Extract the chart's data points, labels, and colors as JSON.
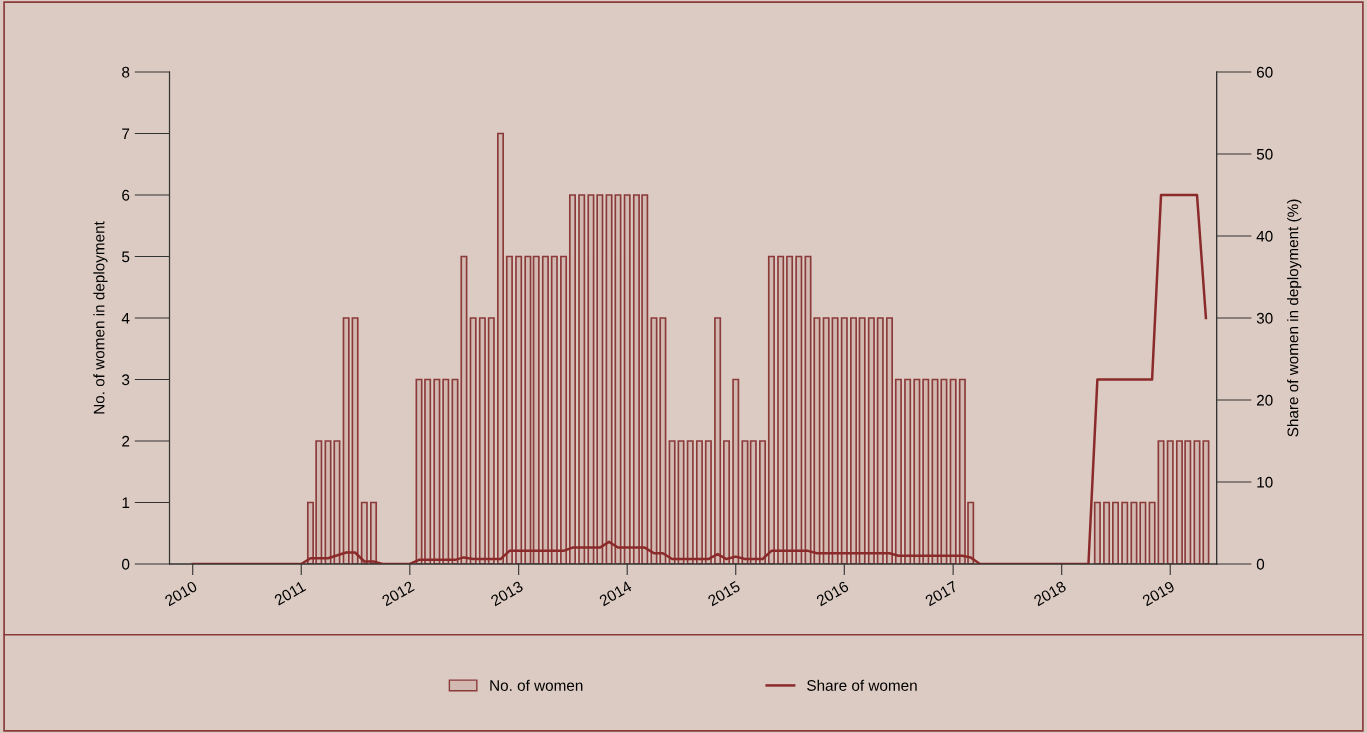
{
  "chart_data": {
    "type": "bar",
    "ylabel": "No. of women in deployment",
    "y2label": "Share of women in deployment (%)",
    "xlim": [
      "2009-10-15",
      "2019-06-06"
    ],
    "xticks": [
      "2010",
      "2011",
      "2012",
      "2013",
      "2014",
      "2015",
      "2016",
      "2017",
      "2018",
      "2019"
    ],
    "ylim": [
      0,
      8
    ],
    "yticks": [
      0,
      1,
      2,
      3,
      4,
      5,
      6,
      7,
      8
    ],
    "y2lim": [
      0,
      60
    ],
    "y2ticks": [
      0,
      10,
      20,
      30,
      40,
      50,
      60
    ],
    "grid": false,
    "legend": "bottom",
    "series": [
      {
        "name": "No. of women",
        "color": "#8b3a3a",
        "x": [
          "2011-02",
          "2011-03",
          "2011-04",
          "2011-05",
          "2011-06",
          "2011-07",
          "2011-08",
          "2011-09",
          "2012-02",
          "2012-03",
          "2012-04",
          "2012-05",
          "2012-06",
          "2012-07",
          "2012-08",
          "2012-09",
          "2012-10",
          "2012-11",
          "2012-12",
          "2013-01",
          "2013-02",
          "2013-03",
          "2013-04",
          "2013-05",
          "2013-06",
          "2013-07",
          "2013-08",
          "2013-09",
          "2013-10",
          "2013-11",
          "2013-12",
          "2014-01",
          "2014-02",
          "2014-03",
          "2014-04",
          "2014-05",
          "2014-06",
          "2014-07",
          "2014-08",
          "2014-09",
          "2014-10",
          "2014-11",
          "2014-12",
          "2015-01",
          "2015-02",
          "2015-03",
          "2015-04",
          "2015-05",
          "2015-06",
          "2015-07",
          "2015-08",
          "2015-09",
          "2015-10",
          "2015-11",
          "2015-12",
          "2016-01",
          "2016-02",
          "2016-03",
          "2016-04",
          "2016-05",
          "2016-06",
          "2016-07",
          "2016-08",
          "2016-09",
          "2016-10",
          "2016-11",
          "2016-12",
          "2017-01",
          "2017-02",
          "2017-03",
          "2018-05",
          "2018-06",
          "2018-07",
          "2018-08",
          "2018-09",
          "2018-10",
          "2018-11",
          "2018-12",
          "2019-01",
          "2019-02",
          "2019-03",
          "2019-04",
          "2019-05"
        ],
        "values": [
          1,
          2,
          2,
          2,
          4,
          4,
          1,
          1,
          3,
          3,
          3,
          3,
          3,
          5,
          4,
          4,
          4,
          7,
          5,
          5,
          5,
          5,
          5,
          5,
          5,
          6,
          6,
          6,
          6,
          6,
          6,
          6,
          6,
          6,
          4,
          4,
          2,
          2,
          2,
          2,
          2,
          4,
          2,
          3,
          2,
          2,
          2,
          5,
          5,
          5,
          5,
          5,
          4,
          4,
          4,
          4,
          4,
          4,
          4,
          4,
          4,
          3,
          3,
          3,
          3,
          3,
          3,
          3,
          3,
          1,
          1,
          1,
          1,
          1,
          1,
          1,
          1,
          2,
          2,
          2,
          2,
          2,
          2
        ]
      },
      {
        "name": "Share of women",
        "type": "line",
        "axis": "y2",
        "color": "#8b2a2a",
        "x": [
          "2010-01",
          "2011-01",
          "2011-02",
          "2011-04",
          "2011-06",
          "2011-07",
          "2011-08",
          "2011-09",
          "2011-10",
          "2012-01",
          "2012-02",
          "2012-06",
          "2012-07",
          "2012-08",
          "2012-11",
          "2012-12",
          "2013-06",
          "2013-07",
          "2013-10",
          "2013-11",
          "2013-12",
          "2014-03",
          "2014-04",
          "2014-05",
          "2014-06",
          "2014-10",
          "2014-11",
          "2014-12",
          "2015-01",
          "2015-02",
          "2015-04",
          "2015-05",
          "2015-09",
          "2015-10",
          "2016-06",
          "2016-07",
          "2017-02",
          "2017-03",
          "2017-04",
          "2018-04",
          "2018-05",
          "2018-11",
          "2018-12",
          "2019-04",
          "2019-05"
        ],
        "values": [
          0,
          0,
          0.7,
          0.7,
          1.4,
          1.4,
          0.3,
          0.3,
          0,
          0,
          0.5,
          0.5,
          0.8,
          0.6,
          0.6,
          1.6,
          1.6,
          2.0,
          2.0,
          2.7,
          2.0,
          2.0,
          1.3,
          1.3,
          0.6,
          0.6,
          1.2,
          0.6,
          0.9,
          0.6,
          0.6,
          1.6,
          1.6,
          1.3,
          1.3,
          1.0,
          1.0,
          0.8,
          0,
          0,
          22.5,
          22.5,
          45,
          45,
          30
        ]
      }
    ]
  }
}
